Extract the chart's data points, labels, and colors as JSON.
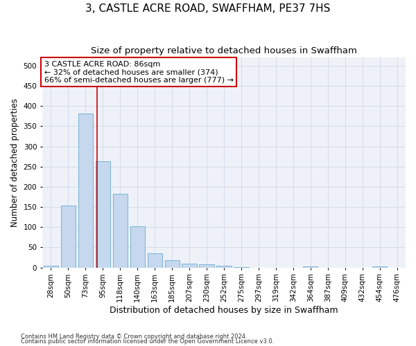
{
  "title": "3, CASTLE ACRE ROAD, SWAFFHAM, PE37 7HS",
  "subtitle": "Size of property relative to detached houses in Swaffham",
  "xlabel": "Distribution of detached houses by size in Swaffham",
  "ylabel": "Number of detached properties",
  "footer1": "Contains HM Land Registry data © Crown copyright and database right 2024.",
  "footer2": "Contains public sector information licensed under the Open Government Licence v3.0.",
  "bin_labels": [
    "28sqm",
    "50sqm",
    "73sqm",
    "95sqm",
    "118sqm",
    "140sqm",
    "163sqm",
    "185sqm",
    "207sqm",
    "230sqm",
    "252sqm",
    "275sqm",
    "297sqm",
    "319sqm",
    "342sqm",
    "364sqm",
    "387sqm",
    "409sqm",
    "432sqm",
    "454sqm",
    "476sqm"
  ],
  "bar_values": [
    5,
    154,
    381,
    263,
    183,
    103,
    35,
    19,
    10,
    8,
    4,
    1,
    0,
    0,
    0,
    3,
    0,
    0,
    0,
    3,
    0
  ],
  "bar_color": "#c5d8ed",
  "bar_edge_color": "#6aaad4",
  "vline_x": 2.65,
  "vline_color": "#cc0000",
  "annotation_line1": "3 CASTLE ACRE ROAD: 86sqm",
  "annotation_line2": "← 32% of detached houses are smaller (374)",
  "annotation_line3": "66% of semi-detached houses are larger (777) →",
  "annotation_box_color": "#ffffff",
  "annotation_box_edge_color": "#cc0000",
  "ylim": [
    0,
    520
  ],
  "yticks": [
    0,
    50,
    100,
    150,
    200,
    250,
    300,
    350,
    400,
    450,
    500
  ],
  "grid_color": "#d0d8e8",
  "background_color": "#eef2f8",
  "title_fontsize": 11,
  "subtitle_fontsize": 9.5,
  "xlabel_fontsize": 9,
  "ylabel_fontsize": 8.5,
  "tick_fontsize": 7.5,
  "annotation_fontsize": 8
}
